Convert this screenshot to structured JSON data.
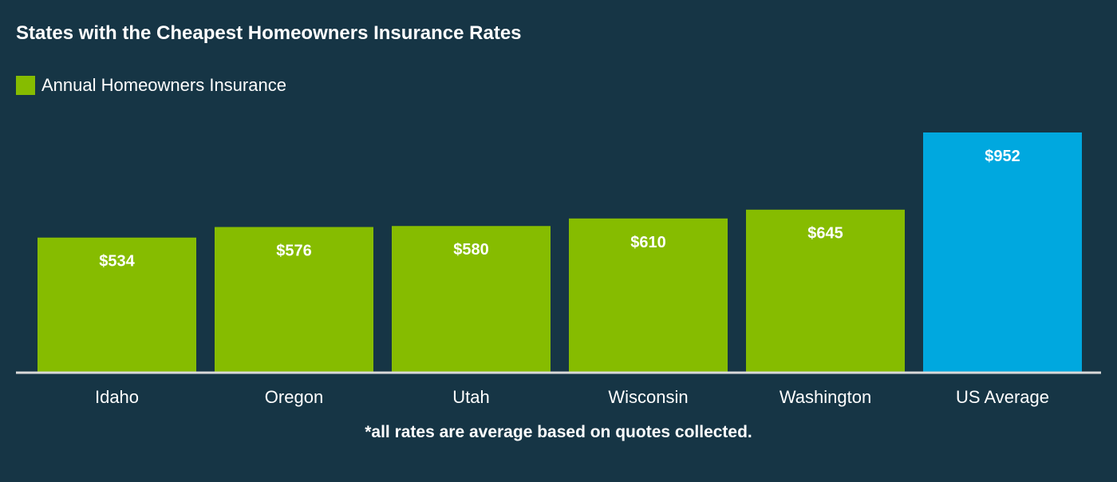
{
  "colors": {
    "background": "#163545",
    "bar": "#86bc00",
    "highlight": "#00a8df",
    "text": "#ffffff",
    "axis": "#d9d9d9"
  },
  "chart_data": {
    "type": "bar",
    "title": "States with the Cheapest Homeowners Insurance Rates",
    "legend": [
      {
        "label": "Annual Homeowners Insurance",
        "color": "#86bc00"
      }
    ],
    "categories": [
      "Idaho",
      "Oregon",
      "Utah",
      "Wisconsin",
      "Washington",
      "US Average"
    ],
    "series": [
      {
        "name": "Annual Homeowners Insurance",
        "values": [
          534,
          576,
          580,
          610,
          645,
          952
        ]
      }
    ],
    "value_labels": [
      "$534",
      "$576",
      "$580",
      "$610",
      "$645",
      "$952"
    ],
    "highlight_category": "US Average",
    "xlabel": "",
    "ylabel": "",
    "ylim": [
      0,
      952
    ],
    "grid": false,
    "legend_position": "top-left",
    "footnote": "*all rates are average based on quotes collected."
  }
}
